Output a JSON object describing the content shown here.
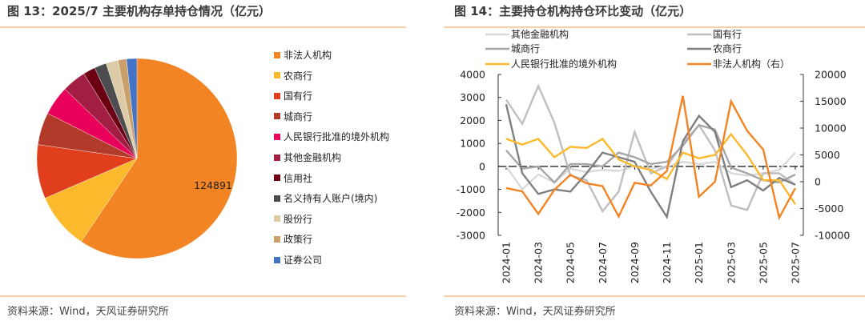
{
  "left": {
    "title": "图 13：2025/7 主要机构存单持仓情况（亿元）",
    "source": "资料来源：Wind，天风证券研究所"
  },
  "right": {
    "title": "图 14：主要持仓机构持仓环比变动（亿元）",
    "source": "资料来源：Wind，天风证券研究所"
  },
  "chart_data": [
    {
      "type": "pie",
      "title": "2025/7 主要机构存单持仓情况（亿元）",
      "data_label": "124891",
      "legend_position": "right",
      "slices": [
        {
          "name": "非法人机构",
          "value": 124891,
          "color": "#F28424"
        },
        {
          "name": "农商行",
          "value": 19200,
          "color": "#FBB92C"
        },
        {
          "name": "国有行",
          "value": 18300,
          "color": "#E03E1C"
        },
        {
          "name": "城商行",
          "value": 11000,
          "color": "#B23A2A"
        },
        {
          "name": "人民银行批准的境外机构",
          "value": 10000,
          "color": "#E8005A"
        },
        {
          "name": "其他金融机构",
          "value": 8200,
          "color": "#A21F43"
        },
        {
          "name": "信用社",
          "value": 4100,
          "color": "#6B0013"
        },
        {
          "name": "名义持有人账户(境内)",
          "value": 4100,
          "color": "#4D4D4F"
        },
        {
          "name": "股份行",
          "value": 4100,
          "color": "#DDCBA8"
        },
        {
          "name": "政策行",
          "value": 2900,
          "color": "#C9A06A"
        },
        {
          "name": "证券公司",
          "value": 3500,
          "color": "#4472C4"
        }
      ]
    },
    {
      "type": "line",
      "title": "主要持仓机构持仓环比变动（亿元）",
      "x": [
        "2024-01",
        "2024-02",
        "2024-03",
        "2024-04",
        "2024-05",
        "2024-06",
        "2024-07",
        "2024-08",
        "2024-09",
        "2024-10",
        "2024-11",
        "2024-12",
        "2025-01",
        "2025-02",
        "2025-03",
        "2025-04",
        "2025-05",
        "2025-06",
        "2025-07"
      ],
      "xticks": [
        "2024-01",
        "2024-03",
        "2024-05",
        "2024-07",
        "2024-09",
        "2024-11",
        "2025-01",
        "2025-03",
        "2025-05",
        "2025-07"
      ],
      "yleft": {
        "ticks": [
          4000,
          3000,
          2000,
          1000,
          0,
          -1000,
          -2000,
          -3000
        ],
        "ylim": [
          -3000,
          4000
        ]
      },
      "yright": {
        "ticks": [
          20000,
          15000,
          10000,
          5000,
          0,
          -5000,
          -10000
        ],
        "ylim": [
          -10000,
          20000
        ]
      },
      "legend_position": "top",
      "series": [
        {
          "name": "其他金融机构",
          "axis": "left",
          "color": "#D9D9D9",
          "values": [
            0,
            -1000,
            -350,
            -700,
            -100,
            -250,
            -150,
            -200,
            0,
            -100,
            0,
            200,
            100,
            200,
            -300,
            -400,
            -300,
            -150,
            600
          ]
        },
        {
          "name": "国有行",
          "axis": "left",
          "color": "#BFBFBF",
          "values": [
            2900,
            1850,
            3500,
            1900,
            -400,
            -600,
            -1950,
            -1100,
            1500,
            -300,
            0,
            1000,
            1800,
            700,
            -1700,
            -1900,
            -300,
            -300,
            -800
          ]
        },
        {
          "name": "城商行",
          "axis": "left",
          "color": "#A6A6A6",
          "values": [
            700,
            -100,
            0,
            -700,
            100,
            100,
            0,
            600,
            400,
            100,
            200,
            900,
            1800,
            1600,
            -50,
            -300,
            -600,
            -700,
            -350
          ]
        },
        {
          "name": "农商行",
          "axis": "left",
          "color": "#7F7F7F",
          "values": [
            2700,
            -300,
            -1200,
            -1000,
            -1100,
            -300,
            600,
            400,
            200,
            -1100,
            -2200,
            1100,
            2200,
            1500,
            -900,
            -600,
            -1050,
            -500,
            -800
          ]
        },
        {
          "name": "人民银行批准的境外机构",
          "axis": "left",
          "color": "#FBB92C",
          "values": [
            1200,
            950,
            1200,
            400,
            850,
            800,
            1200,
            300,
            0,
            -150,
            -550,
            600,
            350,
            500,
            1400,
            500,
            -600,
            -600,
            -1650
          ]
        },
        {
          "name": "非法人机构（右）",
          "axis": "right",
          "color": "#F28424",
          "values": [
            -1200,
            -1800,
            -6000,
            -1500,
            1300,
            -300,
            -800,
            -6500,
            -200,
            -700,
            2000,
            16000,
            -2800,
            0,
            15000,
            9500,
            6000,
            -6700,
            -1200
          ]
        }
      ]
    }
  ]
}
